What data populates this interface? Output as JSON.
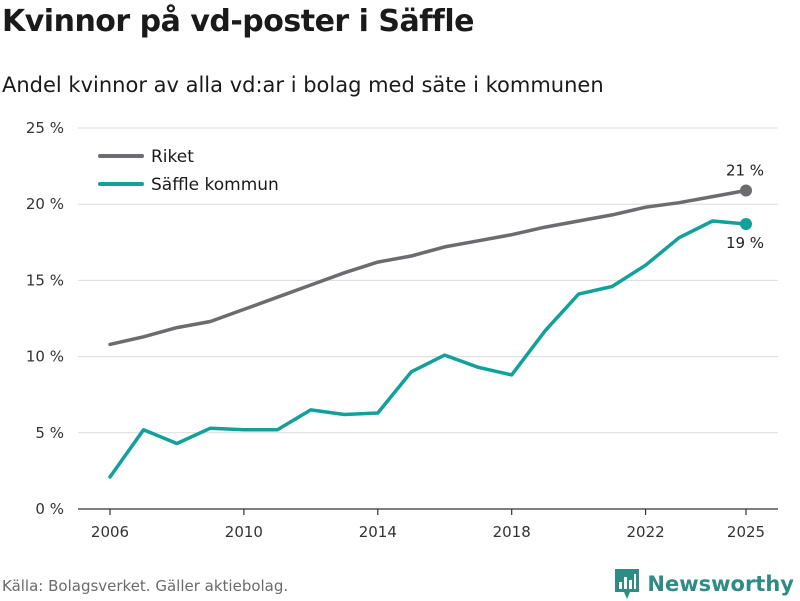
{
  "title": "Kvinnor på vd-poster i Säffle",
  "subtitle": "Andel kvinnor av alla vd:ar i bolag med säte i kommunen",
  "source": "Källa: Bolagsverket. Gäller aktiebolag.",
  "brand": {
    "name": "Newsworthy",
    "logo_icon": "bar-chart-icon",
    "color": "#2e8b85"
  },
  "chart_data": {
    "type": "line",
    "title": "Kvinnor på vd-poster i Säffle",
    "xlabel": "",
    "ylabel": "",
    "x": [
      2006,
      2007,
      2008,
      2009,
      2010,
      2011,
      2012,
      2013,
      2014,
      2015,
      2016,
      2017,
      2018,
      2019,
      2020,
      2021,
      2022,
      2023,
      2024,
      2025
    ],
    "xlim": [
      2006,
      2025
    ],
    "ylim": [
      0,
      25
    ],
    "x_ticks": [
      2006,
      2010,
      2014,
      2018,
      2022,
      2025
    ],
    "x_tick_labels": [
      "2006",
      "2010",
      "2014",
      "2018",
      "2022",
      "2025"
    ],
    "y_ticks": [
      0,
      5,
      10,
      15,
      20,
      25
    ],
    "y_tick_labels": [
      "0 %",
      "5 %",
      "10 %",
      "15 %",
      "20 %",
      "25 %"
    ],
    "grid": true,
    "legend_position": "top-left",
    "series": [
      {
        "name": "Riket",
        "color": "#6b6b70",
        "values": [
          10.8,
          11.3,
          11.9,
          12.3,
          13.1,
          13.9,
          14.7,
          15.5,
          16.2,
          16.6,
          17.2,
          17.6,
          18.0,
          18.5,
          18.9,
          19.3,
          19.8,
          20.1,
          20.5,
          20.9
        ],
        "end_label": "21 %",
        "end_label_position": "above"
      },
      {
        "name": "Säffle kommun",
        "color": "#12a19a",
        "values": [
          2.1,
          5.2,
          4.3,
          5.3,
          5.2,
          5.2,
          6.5,
          6.2,
          6.3,
          9.0,
          10.1,
          9.3,
          8.8,
          11.7,
          14.1,
          14.6,
          16.0,
          17.8,
          18.9,
          18.7
        ],
        "end_label": "19 %",
        "end_label_position": "below"
      }
    ]
  }
}
